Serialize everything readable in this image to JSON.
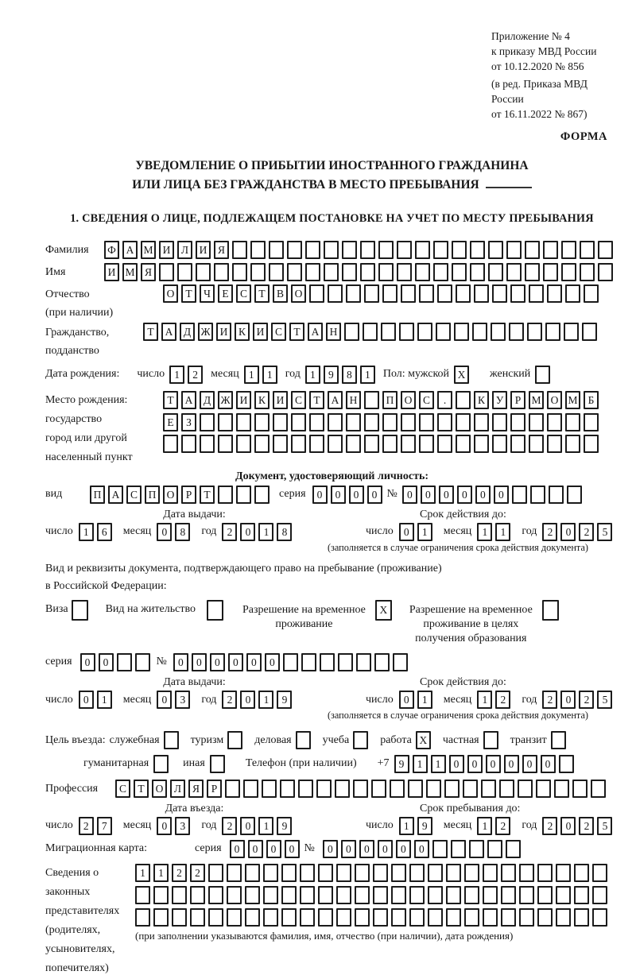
{
  "header": {
    "annex_line1": "Приложение № 4",
    "annex_line2": "к приказу МВД России",
    "annex_line3": "от 10.12.2020 № 856",
    "annex_line4": "(в ред. Приказа МВД России",
    "annex_line5": "от 16.11.2022 № 867)",
    "form_label": "ФОРМА"
  },
  "title": {
    "line1": "УВЕДОМЛЕНИЕ О ПРИБЫТИИ ИНОСТРАННОГО ГРАЖДАНИНА",
    "line2": "ИЛИ ЛИЦА БЕЗ ГРАЖДАНСТВА В МЕСТО ПРЕБЫВАНИЯ"
  },
  "section1_heading": "1. СВЕДЕНИЯ О ЛИЦЕ, ПОДЛЕЖАЩЕМ ПОСТАНОВКЕ НА УЧЕТ ПО МЕСТУ ПРЕБЫВАНИЯ",
  "fields": {
    "surname": {
      "label": "Фамилия",
      "chars": "ФАМИЛИЯ",
      "count": 28
    },
    "given_name": {
      "label": "Имя",
      "chars": "ИМЯ",
      "count": 28
    },
    "patronymic": {
      "label": "Отчество",
      "label_note": "(при наличии)",
      "chars": "ОТЧЕСТВО",
      "count": 24
    },
    "citizenship": {
      "label_line1": "Гражданство,",
      "label_line2": "подданство",
      "chars": "ТАДЖИКИСТАН",
      "count": 25
    },
    "birth_date": {
      "label": "Дата рождения:",
      "day_label": "число",
      "day": {
        "chars": "12",
        "count": 2
      },
      "month_label": "месяц",
      "month": {
        "chars": "11",
        "count": 2
      },
      "year_label": "год",
      "year": {
        "chars": "1981",
        "count": 4
      }
    },
    "sex": {
      "label": "Пол: мужской",
      "male": {
        "chars": "X",
        "count": 1
      },
      "female_label": "женский",
      "female": {
        "chars": "",
        "count": 1
      }
    },
    "birth_place": {
      "label_line1": "Место рождения:",
      "label_line2": "государство",
      "label_line3": "город или другой",
      "label_line4": "населенный пункт",
      "row1": {
        "chars": "ТАДЖИКИСТАН ПОС. КУРМОМБ",
        "count": 24
      },
      "row2": {
        "chars": "ЕЗ",
        "count": 24
      },
      "row3": {
        "chars": "",
        "count": 24
      }
    },
    "identity_doc": {
      "heading": "Документ, удостоверяющий личность:",
      "kind_label": "вид",
      "kind": {
        "chars": "ПАСПОРТ",
        "count": 10
      },
      "series_label": "серия",
      "series": {
        "chars": "0000",
        "count": 4
      },
      "number_label": "№",
      "number": {
        "chars": "000000",
        "count": 10
      },
      "issue": {
        "heading": "Дата выдачи:",
        "day_label": "число",
        "day": {
          "chars": "16",
          "count": 2
        },
        "month_label": "месяц",
        "month": {
          "chars": "08",
          "count": 2
        },
        "year_label": "год",
        "year": {
          "chars": "2018",
          "count": 4
        }
      },
      "expiry": {
        "heading": "Срок действия до:",
        "day_label": "число",
        "day": {
          "chars": "01",
          "count": 2
        },
        "month_label": "месяц",
        "month": {
          "chars": "11",
          "count": 2
        },
        "year_label": "год",
        "year": {
          "chars": "2025",
          "count": 4
        },
        "note": "(заполняется в случае ограничения срока действия документа)"
      }
    },
    "residence_doc": {
      "intro_line1": "Вид и реквизиты документа, подтверждающего право на пребывание (проживание)",
      "intro_line2": "в Российской Федерации:",
      "visa_label": "Виза",
      "visa": {
        "chars": "",
        "count": 1
      },
      "residence_permit_label": "Вид на жительство",
      "residence_permit": {
        "chars": "",
        "count": 1
      },
      "temp_permit_line1": "Разрешение на временное",
      "temp_permit_line2": "проживание",
      "temp_permit": {
        "chars": "X",
        "count": 1
      },
      "edu_permit_line1": "Разрешение на временное",
      "edu_permit_line2": "проживание в целях",
      "edu_permit_line3": "получения образования",
      "edu_permit": {
        "chars": "",
        "count": 1
      },
      "series_label": "серия",
      "series": {
        "chars": "00",
        "count": 4
      },
      "number_label": "№",
      "number": {
        "chars": "000000",
        "count": 13
      },
      "issue": {
        "heading": "Дата выдачи:",
        "day_label": "число",
        "day": {
          "chars": "01",
          "count": 2
        },
        "month_label": "месяц",
        "month": {
          "chars": "03",
          "count": 2
        },
        "year_label": "год",
        "year": {
          "chars": "2019",
          "count": 4
        }
      },
      "expiry": {
        "heading": "Срок действия до:",
        "day_label": "число",
        "day": {
          "chars": "01",
          "count": 2
        },
        "month_label": "месяц",
        "month": {
          "chars": "12",
          "count": 2
        },
        "year_label": "год",
        "year": {
          "chars": "2025",
          "count": 4
        },
        "note": "(заполняется в случае ограничения срока действия документа)"
      }
    },
    "visit_purpose": {
      "label": "Цель въезда:",
      "options_line1": [
        {
          "label": "служебная",
          "box": {
            "chars": "",
            "count": 1
          }
        },
        {
          "label": "туризм",
          "box": {
            "chars": "",
            "count": 1
          }
        },
        {
          "label": "деловая",
          "box": {
            "chars": "",
            "count": 1
          }
        },
        {
          "label": "учеба",
          "box": {
            "chars": "",
            "count": 1
          }
        },
        {
          "label": "работа",
          "box": {
            "chars": "X",
            "count": 1
          }
        },
        {
          "label": "частная",
          "box": {
            "chars": "",
            "count": 1
          }
        },
        {
          "label": "транзит",
          "box": {
            "chars": "",
            "count": 1
          }
        }
      ],
      "options_line2": [
        {
          "label": "гуманитарная",
          "box": {
            "chars": "",
            "count": 1
          }
        },
        {
          "label": "иная",
          "box": {
            "chars": "",
            "count": 1
          }
        }
      ],
      "phone_label": "Телефон (при наличии)",
      "phone_prefix": "+7",
      "phone": {
        "chars": "911000000",
        "count": 10
      }
    },
    "profession": {
      "label": "Профессия",
      "chars": "СТОЛЯР",
      "count": 27
    },
    "entry": {
      "issue": {
        "heading": "Дата въезда:",
        "day_label": "число",
        "day": {
          "chars": "27",
          "count": 2
        },
        "month_label": "месяц",
        "month": {
          "chars": "03",
          "count": 2
        },
        "year_label": "год",
        "year": {
          "chars": "2019",
          "count": 4
        }
      },
      "expiry": {
        "heading": "Срок пребывания до:",
        "day_label": "число",
        "day": {
          "chars": "19",
          "count": 2
        },
        "month_label": "месяц",
        "month": {
          "chars": "12",
          "count": 2
        },
        "year_label": "год",
        "year": {
          "chars": "2025",
          "count": 4
        }
      }
    },
    "migration_card": {
      "label": "Миграционная карта:",
      "series_label": "серия",
      "series": {
        "chars": "0000",
        "count": 4
      },
      "number_label": "№",
      "number": {
        "chars": "000000",
        "count": 11
      }
    },
    "legal_representatives": {
      "label_line1": "Сведения о",
      "label_line2": "законных",
      "label_line3": "представителях",
      "label_line4": "(родителях,",
      "label_line5": "усыновителях,",
      "label_line6": "попечителях)",
      "row1": {
        "chars": "1122",
        "count": 26
      },
      "row2": {
        "chars": "",
        "count": 26
      },
      "row3": {
        "chars": "",
        "count": 26
      },
      "note": "(при заполнении указываются фамилия, имя, отчество (при наличии), дата рождения)"
    }
  }
}
